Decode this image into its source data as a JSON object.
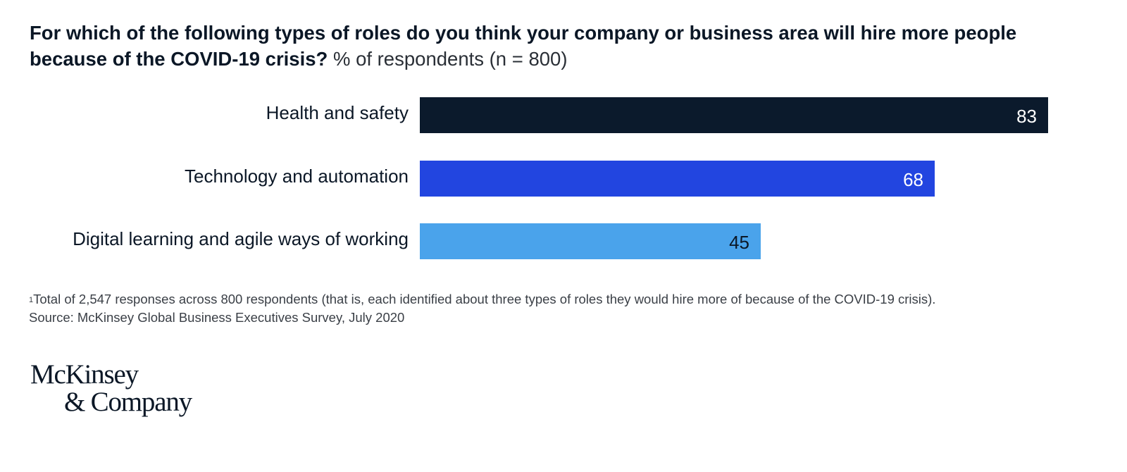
{
  "title": {
    "main": "For which of the following types of roles do you think your company or business area will hire more people because of the COVID-19 crisis?",
    "subtitle": "% of respondents (n = 800)"
  },
  "chart_data": {
    "type": "bar",
    "orientation": "horizontal",
    "categories": [
      "Health and safety",
      "Technology and automation",
      "Digital learning and agile ways of working"
    ],
    "values": [
      83,
      68,
      45
    ],
    "colors": [
      "#0b1a2c",
      "#2245e0",
      "#4aa3eb"
    ],
    "value_label_colors": [
      "#ffffff",
      "#ffffff",
      "#0b1726"
    ],
    "title": "For which of the following types of roles do you think your company or business area will hire more people because of the COVID-19 crisis?",
    "subtitle": "% of respondents (n = 800)",
    "xlabel": "",
    "ylabel": "",
    "xlim": [
      0,
      83
    ],
    "grid": false,
    "legend": "none"
  },
  "footnote": {
    "marker": "1",
    "note": "Total of 2,547 responses across 800 respondents (that is, each identified about three types of roles they would hire more of because of the COVID-19 crisis).",
    "source": "Source: McKinsey Global Business Executives Survey, July 2020"
  },
  "logo": {
    "line1": "McKinsey",
    "line2": "& Company"
  }
}
